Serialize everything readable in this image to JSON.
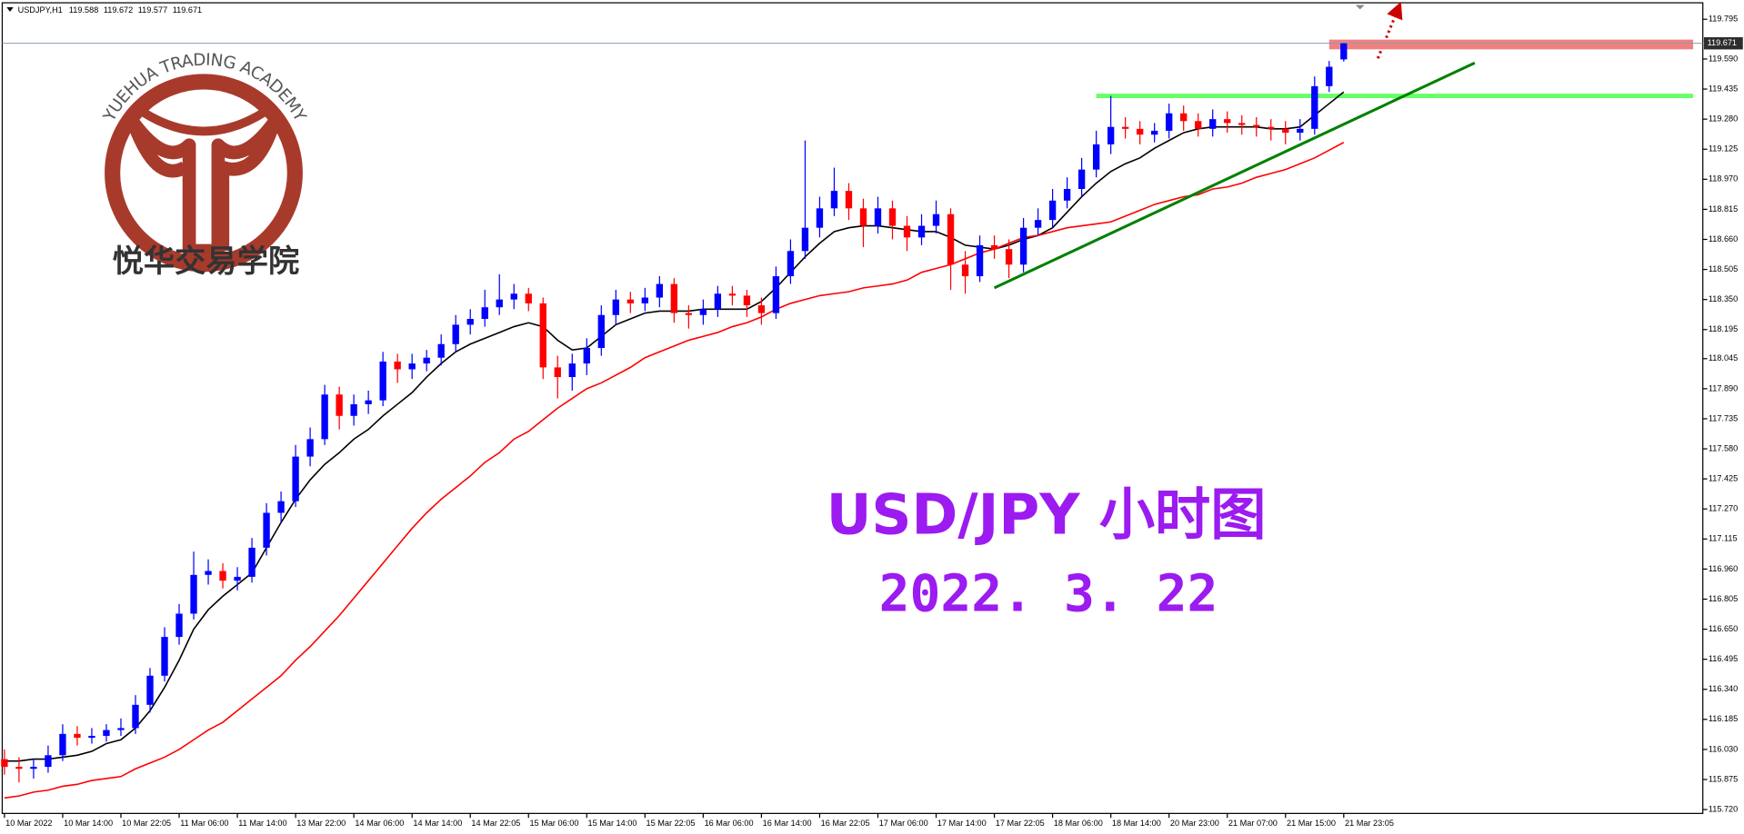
{
  "chart_data": {
    "type": "candlestick",
    "symbol": "USDJPY,H1",
    "info_ohlc": [
      119.588,
      119.672,
      119.577,
      119.671
    ],
    "current_price": 119.671,
    "up_color": "#0000ff",
    "down_color": "#ff0000",
    "categories": [
      "10 Mar 2022",
      null,
      null,
      null,
      "10 Mar 14:00",
      null,
      null,
      null,
      "10 Mar 22:05",
      null,
      null,
      null,
      "11 Mar 06:00",
      null,
      null,
      null,
      "11 Mar 14:00",
      null,
      null,
      null,
      "13 Mar 22:00",
      null,
      null,
      null,
      "14 Mar 06:00",
      null,
      null,
      null,
      "14 Mar 14:00",
      null,
      null,
      null,
      "14 Mar 22:05",
      null,
      null,
      null,
      "15 Mar 06:00",
      null,
      null,
      null,
      "15 Mar 14:00",
      null,
      null,
      null,
      "15 Mar 22:05",
      null,
      null,
      null,
      "16 Mar 06:00",
      null,
      null,
      null,
      "16 Mar 14:00",
      null,
      null,
      null,
      "16 Mar 22:05",
      null,
      null,
      null,
      "17 Mar 06:00",
      null,
      null,
      null,
      "17 Mar 14:00",
      null,
      null,
      null,
      "17 Mar 22:05",
      null,
      null,
      null,
      "18 Mar 06:00",
      null,
      null,
      null,
      "18 Mar 14:00",
      null,
      null,
      null,
      "20 Mar 23:00",
      null,
      null,
      null,
      "21 Mar 07:00",
      null,
      null,
      null,
      "21 Mar 15:00",
      null,
      null,
      null,
      "21 Mar 23:05"
    ],
    "ohlc": [
      [
        115.98,
        116.03,
        115.9,
        115.94
      ],
      [
        115.94,
        115.99,
        115.86,
        115.93
      ],
      [
        115.93,
        115.98,
        115.88,
        115.94
      ],
      [
        115.94,
        116.05,
        115.91,
        116.0
      ],
      [
        116.0,
        116.16,
        115.97,
        116.11
      ],
      [
        116.11,
        116.15,
        116.05,
        116.09
      ],
      [
        116.09,
        116.14,
        116.06,
        116.1
      ],
      [
        116.1,
        116.16,
        116.07,
        116.13
      ],
      [
        116.13,
        116.19,
        116.1,
        116.14
      ],
      [
        116.14,
        116.31,
        116.11,
        116.26
      ],
      [
        116.26,
        116.45,
        116.22,
        116.41
      ],
      [
        116.41,
        116.66,
        116.38,
        116.61
      ],
      [
        116.61,
        116.78,
        116.57,
        116.73
      ],
      [
        116.73,
        117.05,
        116.7,
        116.93
      ],
      [
        116.93,
        117.01,
        116.88,
        116.95
      ],
      [
        116.95,
        116.99,
        116.86,
        116.9
      ],
      [
        116.9,
        116.97,
        116.85,
        116.92
      ],
      [
        116.92,
        117.12,
        116.89,
        117.07
      ],
      [
        117.07,
        117.3,
        117.03,
        117.25
      ],
      [
        117.25,
        117.36,
        117.2,
        117.31
      ],
      [
        117.31,
        117.6,
        117.28,
        117.54
      ],
      [
        117.54,
        117.69,
        117.49,
        117.63
      ],
      [
        117.63,
        117.91,
        117.6,
        117.86
      ],
      [
        117.86,
        117.9,
        117.68,
        117.75
      ],
      [
        117.75,
        117.86,
        117.7,
        117.81
      ],
      [
        117.81,
        117.88,
        117.76,
        117.83
      ],
      [
        117.83,
        118.08,
        117.8,
        118.03
      ],
      [
        118.03,
        118.07,
        117.92,
        117.99
      ],
      [
        117.99,
        118.07,
        117.94,
        118.02
      ],
      [
        118.02,
        118.09,
        117.98,
        118.05
      ],
      [
        118.05,
        118.17,
        118.01,
        118.12
      ],
      [
        118.12,
        118.27,
        118.08,
        118.22
      ],
      [
        118.22,
        118.3,
        118.17,
        118.25
      ],
      [
        118.25,
        118.4,
        118.21,
        118.31
      ],
      [
        118.31,
        118.48,
        118.27,
        118.35
      ],
      [
        118.35,
        118.43,
        118.3,
        118.38
      ],
      [
        118.38,
        118.41,
        118.29,
        118.33
      ],
      [
        118.33,
        118.36,
        117.94,
        118.0
      ],
      [
        118.0,
        118.06,
        117.84,
        117.95
      ],
      [
        117.95,
        118.07,
        117.88,
        118.02
      ],
      [
        118.02,
        118.15,
        117.96,
        118.1
      ],
      [
        118.1,
        118.32,
        118.06,
        118.27
      ],
      [
        118.27,
        118.4,
        118.22,
        118.35
      ],
      [
        118.35,
        118.39,
        118.28,
        118.33
      ],
      [
        118.33,
        118.41,
        118.29,
        118.36
      ],
      [
        118.36,
        118.47,
        118.31,
        118.43
      ],
      [
        118.43,
        118.46,
        118.23,
        118.28
      ],
      [
        118.28,
        118.32,
        118.2,
        118.27
      ],
      [
        118.27,
        118.35,
        118.22,
        118.3
      ],
      [
        118.3,
        118.42,
        118.26,
        118.38
      ],
      [
        118.38,
        118.42,
        118.32,
        118.37
      ],
      [
        118.37,
        118.4,
        118.26,
        118.32
      ],
      [
        118.32,
        118.36,
        118.22,
        118.28
      ],
      [
        118.28,
        118.52,
        118.25,
        118.47
      ],
      [
        118.47,
        118.66,
        118.43,
        118.6
      ],
      [
        118.6,
        119.17,
        118.56,
        118.72
      ],
      [
        118.72,
        118.88,
        118.67,
        118.82
      ],
      [
        118.82,
        119.03,
        118.78,
        118.91
      ],
      [
        118.91,
        118.95,
        118.76,
        118.82
      ],
      [
        118.82,
        118.87,
        118.62,
        118.73
      ],
      [
        118.73,
        118.88,
        118.69,
        118.82
      ],
      [
        118.82,
        118.86,
        118.66,
        118.73
      ],
      [
        118.73,
        118.78,
        118.6,
        118.67
      ],
      [
        118.67,
        118.79,
        118.63,
        118.73
      ],
      [
        118.73,
        118.86,
        118.69,
        118.79
      ],
      [
        118.79,
        118.82,
        118.4,
        118.53
      ],
      [
        118.53,
        118.6,
        118.38,
        118.47
      ],
      [
        118.47,
        118.68,
        118.44,
        118.63
      ],
      [
        118.63,
        118.68,
        118.56,
        118.61
      ],
      [
        118.61,
        118.66,
        118.46,
        118.53
      ],
      [
        118.53,
        118.77,
        118.49,
        118.72
      ],
      [
        118.72,
        118.82,
        118.68,
        118.76
      ],
      [
        118.76,
        118.92,
        118.72,
        118.86
      ],
      [
        118.86,
        118.98,
        118.82,
        118.92
      ],
      [
        118.92,
        119.08,
        118.88,
        119.02
      ],
      [
        119.02,
        119.22,
        118.98,
        119.15
      ],
      [
        119.15,
        119.4,
        119.1,
        119.24
      ],
      [
        119.24,
        119.29,
        119.18,
        119.23
      ],
      [
        119.23,
        119.27,
        119.15,
        119.2
      ],
      [
        119.2,
        119.26,
        119.16,
        119.22
      ],
      [
        119.22,
        119.36,
        119.18,
        119.31
      ],
      [
        119.31,
        119.35,
        119.22,
        119.27
      ],
      [
        119.27,
        119.31,
        119.19,
        119.23
      ],
      [
        119.23,
        119.33,
        119.19,
        119.28
      ],
      [
        119.28,
        119.32,
        119.21,
        119.26
      ],
      [
        119.26,
        119.3,
        119.2,
        119.25
      ],
      [
        119.25,
        119.29,
        119.19,
        119.24
      ],
      [
        119.24,
        119.28,
        119.17,
        119.23
      ],
      [
        119.23,
        119.27,
        119.15,
        119.21
      ],
      [
        119.21,
        119.28,
        119.17,
        119.23
      ],
      [
        119.23,
        119.5,
        119.2,
        119.45
      ],
      [
        119.45,
        119.58,
        119.42,
        119.55
      ],
      [
        119.588,
        119.672,
        119.577,
        119.671
      ]
    ],
    "series": [
      {
        "color": "#000000",
        "values": [
          115.97,
          115.97,
          115.98,
          115.98,
          115.99,
          116.0,
          116.02,
          116.06,
          116.08,
          116.14,
          116.23,
          116.35,
          116.49,
          116.65,
          116.75,
          116.82,
          116.88,
          116.94,
          117.07,
          117.2,
          117.32,
          117.42,
          117.5,
          117.56,
          117.63,
          117.68,
          117.75,
          117.81,
          117.87,
          117.95,
          118.02,
          118.08,
          118.12,
          118.15,
          118.18,
          118.21,
          118.23,
          118.21,
          118.14,
          118.09,
          118.1,
          118.16,
          118.22,
          118.25,
          118.28,
          118.29,
          118.29,
          118.29,
          118.3,
          118.3,
          118.3,
          118.3,
          118.34,
          118.41,
          118.49,
          118.57,
          118.64,
          118.7,
          118.72,
          118.73,
          118.73,
          118.72,
          118.71,
          118.7,
          118.7,
          118.67,
          118.63,
          118.62,
          118.61,
          118.63,
          118.66,
          118.68,
          118.72,
          118.8,
          118.88,
          118.95,
          119.01,
          119.05,
          119.08,
          119.13,
          119.17,
          119.21,
          119.23,
          119.24,
          119.24,
          119.24,
          119.24,
          119.23,
          119.23,
          119.24,
          119.3,
          119.36,
          119.42
        ]
      },
      {
        "color": "#ff0000",
        "values": [
          115.78,
          115.79,
          115.81,
          115.82,
          115.84,
          115.85,
          115.87,
          115.88,
          115.89,
          115.93,
          115.96,
          115.99,
          116.03,
          116.08,
          116.13,
          116.17,
          116.23,
          116.29,
          116.35,
          116.41,
          116.49,
          116.56,
          116.64,
          116.72,
          116.81,
          116.9,
          116.99,
          117.08,
          117.17,
          117.25,
          117.32,
          117.38,
          117.44,
          117.51,
          117.56,
          117.63,
          117.67,
          117.73,
          117.79,
          117.84,
          117.89,
          117.92,
          117.96,
          118.0,
          118.05,
          118.08,
          118.11,
          118.14,
          118.16,
          118.18,
          118.21,
          118.23,
          118.26,
          118.3,
          118.33,
          118.35,
          118.37,
          118.38,
          118.39,
          118.41,
          118.42,
          118.43,
          118.45,
          118.49,
          118.51,
          118.53,
          118.56,
          118.59,
          118.61,
          118.64,
          118.67,
          118.68,
          118.7,
          118.72,
          118.73,
          118.74,
          118.75,
          118.78,
          118.81,
          118.84,
          118.86,
          118.88,
          118.89,
          118.92,
          118.93,
          118.95,
          118.98,
          119.0,
          119.02,
          119.05,
          119.08,
          119.12,
          119.16
        ]
      }
    ],
    "trendline": {
      "x": [
        68,
        101
      ],
      "values": [
        118.41,
        119.57
      ],
      "color": "#008000"
    },
    "resistance": {
      "x": [
        75,
        116
      ],
      "value": 119.4,
      "color": "#66ff66"
    },
    "zone": {
      "x": [
        91,
        116
      ],
      "values": [
        119.64,
        119.69
      ],
      "color": "#f08080"
    },
    "ylim": [
      115.7,
      119.88
    ],
    "yticks": [
      119.795,
      {
        "value": 119.59,
        "label": "119.590"
      },
      119.435,
      {
        "value": 119.28,
        "label": "119.280"
      },
      119.125,
      {
        "value": 118.97,
        "label": "118.970"
      },
      118.815,
      {
        "value": 118.66,
        "label": "118.660"
      },
      118.505,
      {
        "value": 118.35,
        "label": "118.350"
      },
      118.195,
      118.045,
      {
        "value": 117.89,
        "label": "117.890"
      },
      117.735,
      {
        "value": 117.58,
        "label": "117.580"
      },
      117.425,
      {
        "value": 117.27,
        "label": "117.270"
      },
      117.115,
      {
        "value": 116.96,
        "label": "116.960"
      },
      116.805,
      {
        "value": 116.65,
        "label": "116.650"
      },
      116.495,
      {
        "value": 116.34,
        "label": "116.340"
      },
      116.185,
      {
        "value": 116.03,
        "label": "116.030"
      },
      115.875,
      {
        "value": 115.72,
        "label": "115.720"
      }
    ],
    "annotations": {
      "title": "USD/JPY 小时图",
      "date": "2022. 3. 22",
      "logo_en": "YUEHUA TRADING ACADEMY",
      "logo_cn": "悦华交易学院"
    }
  }
}
